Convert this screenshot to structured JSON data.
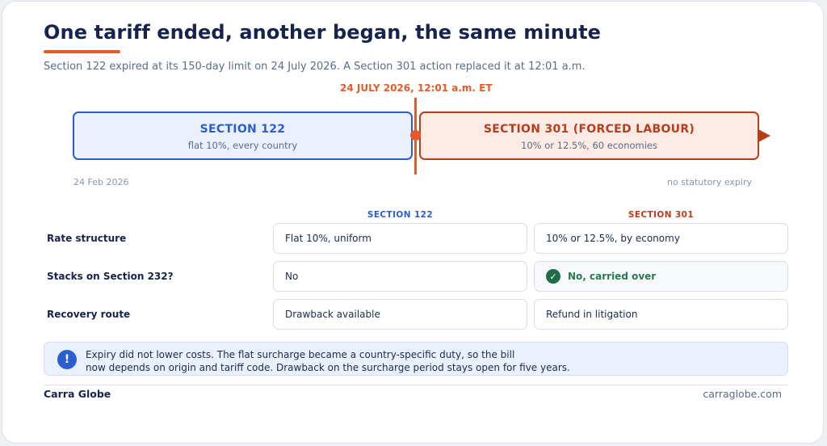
{
  "title": "One tariff ended, another began, the same minute",
  "subtitle": "Section 122 expired at its 150-day limit on 24 July 2026. A Section 301 action replaced it at 12:01 a.m.",
  "timeline": {
    "marker_label": "24 JULY 2026, 12:01 a.m. ET",
    "left_box": {
      "title": "SECTION 122",
      "sub": "flat 10%, every country"
    },
    "right_box": {
      "title": "SECTION 301 (FORCED LABOUR)",
      "sub": "10% or 12.5%, 60 economies"
    },
    "start_date": "24 Feb 2026",
    "end_note": "no statutory expiry"
  },
  "comparison": {
    "columns": [
      "SECTION 122",
      "SECTION 301"
    ],
    "rows": [
      {
        "label": "Rate structure",
        "s122": "Flat 10%, uniform",
        "s301": "10% or 12.5%, by economy"
      },
      {
        "label": "Stacks on Section 232?",
        "s122": "No",
        "s301": "No, carried over"
      },
      {
        "label": "Recovery route",
        "s122": "Drawback available",
        "s301": "Refund in litigation"
      }
    ]
  },
  "note": {
    "icon": "!",
    "line1": "Expiry did not lower costs. The flat surcharge became a country-specific duty, so the bill",
    "line2": "now depends on origin and tariff code. Drawback on the surcharge period stays open for five years."
  },
  "footer": {
    "brand": "Carra Globe",
    "url": "carraglobe.com"
  },
  "colors": {
    "accent": "#e55a2b",
    "section122": "#2a5fd0",
    "section301": "#b83d1a",
    "navy": "#16244d"
  }
}
